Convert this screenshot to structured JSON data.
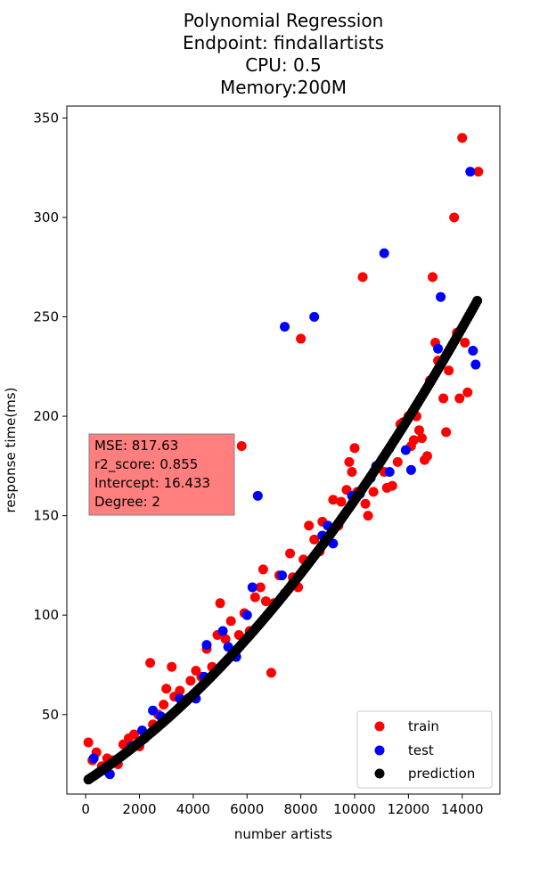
{
  "chart_data": {
    "type": "scatter",
    "title_lines": [
      "Polynomial Regression",
      "Endpoint: findallartists",
      "CPU: 0.5",
      "Memory:200M"
    ],
    "xlabel": "number artists",
    "ylabel": "response time(ms)",
    "xlim": [
      -700,
      15400
    ],
    "ylim": [
      10,
      356
    ],
    "xticks": [
      0,
      2000,
      4000,
      6000,
      8000,
      10000,
      12000,
      14000
    ],
    "yticks": [
      50,
      100,
      150,
      200,
      250,
      300,
      350
    ],
    "legend_position": "lower-right",
    "stats_box": {
      "lines": [
        "MSE: 817.63",
        "r2_score: 0.855",
        "Intercept: 16.433",
        "Degree: 2"
      ],
      "background": "#ff7f7f"
    },
    "colors": {
      "train": "#ff0000",
      "test": "#0000ff",
      "prediction": "#000000"
    },
    "prediction_model": {
      "intercept": 16.433,
      "linear": 0.00875,
      "quadratic": 5.39e-07,
      "x_start": 100,
      "x_end": 14600,
      "step": 60
    },
    "series": [
      {
        "name": "train",
        "color": "#ff0000",
        "points": [
          [
            100,
            36
          ],
          [
            250,
            27
          ],
          [
            400,
            31
          ],
          [
            600,
            24
          ],
          [
            800,
            28
          ],
          [
            1000,
            27
          ],
          [
            1200,
            25
          ],
          [
            1400,
            35
          ],
          [
            1600,
            38
          ],
          [
            1800,
            40
          ],
          [
            2000,
            34
          ],
          [
            2200,
            38
          ],
          [
            2400,
            76
          ],
          [
            2500,
            45
          ],
          [
            2700,
            50
          ],
          [
            2900,
            55
          ],
          [
            3000,
            63
          ],
          [
            3200,
            74
          ],
          [
            3300,
            59
          ],
          [
            3500,
            62
          ],
          [
            3700,
            57
          ],
          [
            3900,
            67
          ],
          [
            4100,
            72
          ],
          [
            4300,
            69
          ],
          [
            4500,
            83
          ],
          [
            4700,
            74
          ],
          [
            4800,
            71
          ],
          [
            4900,
            90
          ],
          [
            5000,
            106
          ],
          [
            5200,
            88
          ],
          [
            5400,
            97
          ],
          [
            5600,
            82
          ],
          [
            5700,
            90
          ],
          [
            5800,
            185
          ],
          [
            5900,
            101
          ],
          [
            6100,
            92
          ],
          [
            6300,
            109
          ],
          [
            6500,
            114
          ],
          [
            6600,
            123
          ],
          [
            6700,
            107
          ],
          [
            6900,
            71
          ],
          [
            7000,
            106
          ],
          [
            7200,
            120
          ],
          [
            7400,
            111
          ],
          [
            7600,
            131
          ],
          [
            7700,
            119
          ],
          [
            7900,
            114
          ],
          [
            8000,
            239
          ],
          [
            8100,
            128
          ],
          [
            8300,
            145
          ],
          [
            8500,
            138
          ],
          [
            8700,
            132
          ],
          [
            8800,
            147
          ],
          [
            9000,
            139
          ],
          [
            9200,
            158
          ],
          [
            9400,
            145
          ],
          [
            9500,
            157
          ],
          [
            9700,
            163
          ],
          [
            9800,
            177
          ],
          [
            9900,
            172
          ],
          [
            10000,
            184
          ],
          [
            10100,
            162
          ],
          [
            10300,
            270
          ],
          [
            10400,
            156
          ],
          [
            10500,
            150
          ],
          [
            10700,
            162
          ],
          [
            10900,
            174
          ],
          [
            11100,
            172
          ],
          [
            11200,
            164
          ],
          [
            11300,
            184
          ],
          [
            11400,
            165
          ],
          [
            11600,
            177
          ],
          [
            11700,
            196
          ],
          [
            11800,
            197
          ],
          [
            12000,
            200
          ],
          [
            12100,
            185
          ],
          [
            12200,
            188
          ],
          [
            12300,
            200
          ],
          [
            12400,
            193
          ],
          [
            12500,
            189
          ],
          [
            12600,
            178
          ],
          [
            12700,
            180
          ],
          [
            12800,
            218
          ],
          [
            12900,
            270
          ],
          [
            13000,
            237
          ],
          [
            13100,
            228
          ],
          [
            13300,
            209
          ],
          [
            13400,
            192
          ],
          [
            13500,
            223
          ],
          [
            13700,
            300
          ],
          [
            13800,
            242
          ],
          [
            13900,
            209
          ],
          [
            14000,
            340
          ],
          [
            14100,
            237
          ],
          [
            14200,
            212
          ],
          [
            14600,
            323
          ]
        ]
      },
      {
        "name": "test",
        "color": "#0000ff",
        "points": [
          [
            300,
            28
          ],
          [
            700,
            22
          ],
          [
            900,
            20
          ],
          [
            1700,
            34
          ],
          [
            2100,
            42
          ],
          [
            2500,
            52
          ],
          [
            2800,
            49
          ],
          [
            3500,
            58
          ],
          [
            3800,
            58
          ],
          [
            4100,
            58
          ],
          [
            4400,
            69
          ],
          [
            4500,
            85
          ],
          [
            5100,
            92
          ],
          [
            5300,
            84
          ],
          [
            5600,
            79
          ],
          [
            6000,
            100
          ],
          [
            6200,
            114
          ],
          [
            6400,
            160
          ],
          [
            7300,
            120
          ],
          [
            7400,
            245
          ],
          [
            7700,
            116
          ],
          [
            8400,
            128
          ],
          [
            8500,
            250
          ],
          [
            8800,
            140
          ],
          [
            9000,
            145
          ],
          [
            9200,
            136
          ],
          [
            9900,
            160
          ],
          [
            10200,
            161
          ],
          [
            10600,
            169
          ],
          [
            10800,
            175
          ],
          [
            11100,
            282
          ],
          [
            11300,
            172
          ],
          [
            11900,
            183
          ],
          [
            12100,
            173
          ],
          [
            13100,
            234
          ],
          [
            13200,
            260
          ],
          [
            14300,
            323
          ],
          [
            14400,
            233
          ],
          [
            14500,
            226
          ]
        ]
      }
    ],
    "legend": [
      {
        "label": "train",
        "color": "#ff0000"
      },
      {
        "label": "test",
        "color": "#0000ff"
      },
      {
        "label": "prediction",
        "color": "#000000"
      }
    ]
  }
}
